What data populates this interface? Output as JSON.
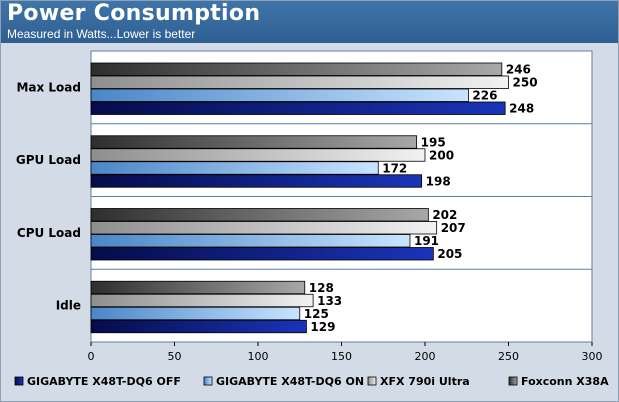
{
  "colors": {
    "header": "#336699",
    "frame": "#d3dce6",
    "plot_bg": "#ffffff",
    "series": [
      "#0a1a7a",
      "#8cc0f4",
      "#c8c8c8",
      "#6e6e6e"
    ]
  },
  "chart_data": {
    "type": "bar",
    "orientation": "horizontal",
    "title": "Power Consumption",
    "subtitle": "Measured in Watts...Lower is better",
    "categories": [
      "Max Load",
      "GPU Load",
      "CPU Load",
      "Idle"
    ],
    "series": [
      {
        "name": "GIGABYTE X48T-DQ6 OFF",
        "values": [
          248,
          198,
          205,
          129
        ]
      },
      {
        "name": "GIGABYTE X48T-DQ6 ON",
        "values": [
          226,
          172,
          191,
          125
        ]
      },
      {
        "name": "XFX 790i Ultra",
        "values": [
          250,
          200,
          207,
          133
        ]
      },
      {
        "name": "Foxconn X38A",
        "values": [
          246,
          195,
          202,
          128
        ]
      }
    ],
    "xlim": [
      0,
      300
    ],
    "xticks": [
      0,
      50,
      100,
      150,
      200,
      250,
      300
    ],
    "data_labels": true,
    "grid": false,
    "legend_position": "bottom"
  }
}
